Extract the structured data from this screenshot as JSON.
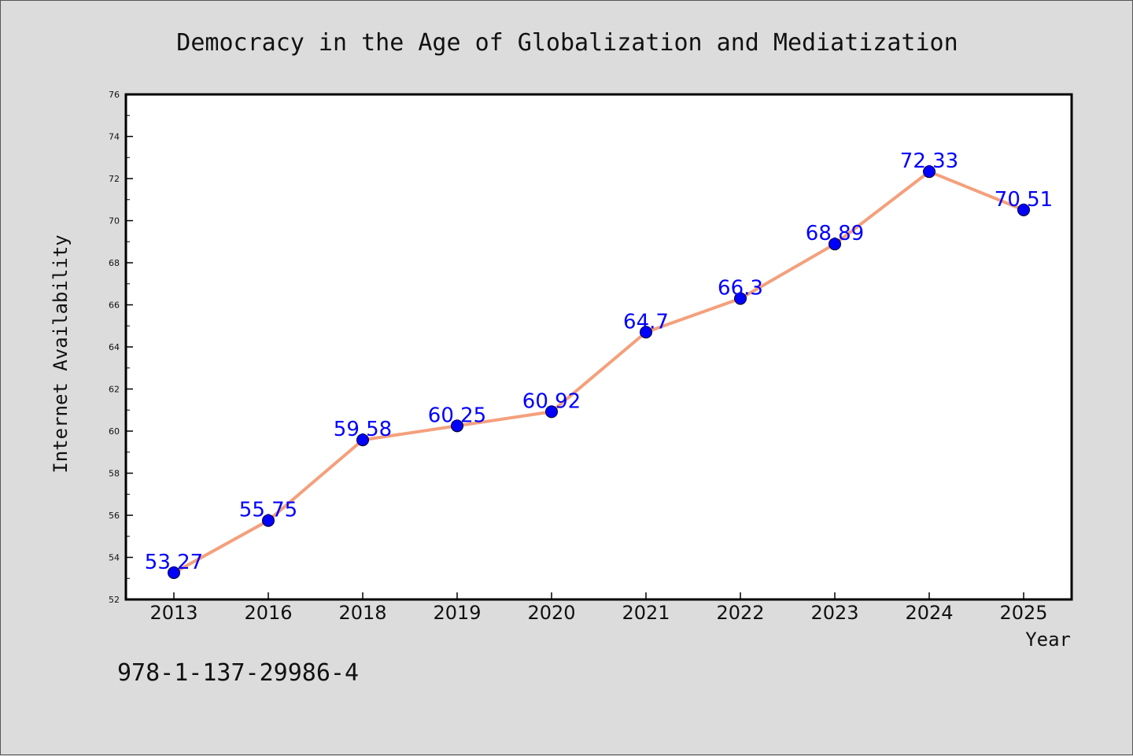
{
  "chart_data": {
    "type": "line",
    "title": "Democracy in the Age of Globalization and Mediatization",
    "xlabel": "Year",
    "ylabel": "Internet Availability",
    "categories": [
      "2013",
      "2016",
      "2018",
      "2019",
      "2020",
      "2021",
      "2022",
      "2023",
      "2024",
      "2025"
    ],
    "series": [
      {
        "values": [
          53.27,
          55.75,
          59.58,
          60.25,
          60.92,
          64.7,
          66.3,
          68.89,
          72.33,
          70.51
        ],
        "labels": [
          "53.27",
          "55.75",
          "59.58",
          "60.25",
          "60.92",
          "64.7",
          "66.3",
          "68.89",
          "72.33",
          "70.51"
        ],
        "line_color": "#f4a07c",
        "marker_color": "#0000ff"
      }
    ],
    "ylim": [
      52,
      76
    ],
    "yticks": [
      "52",
      "54",
      "56",
      "58",
      "60",
      "62",
      "64",
      "66",
      "68",
      "70",
      "72",
      "74",
      "76"
    ],
    "grid": false,
    "legend": "none"
  },
  "footer": {
    "isbn": "978-1-137-29986-4"
  }
}
